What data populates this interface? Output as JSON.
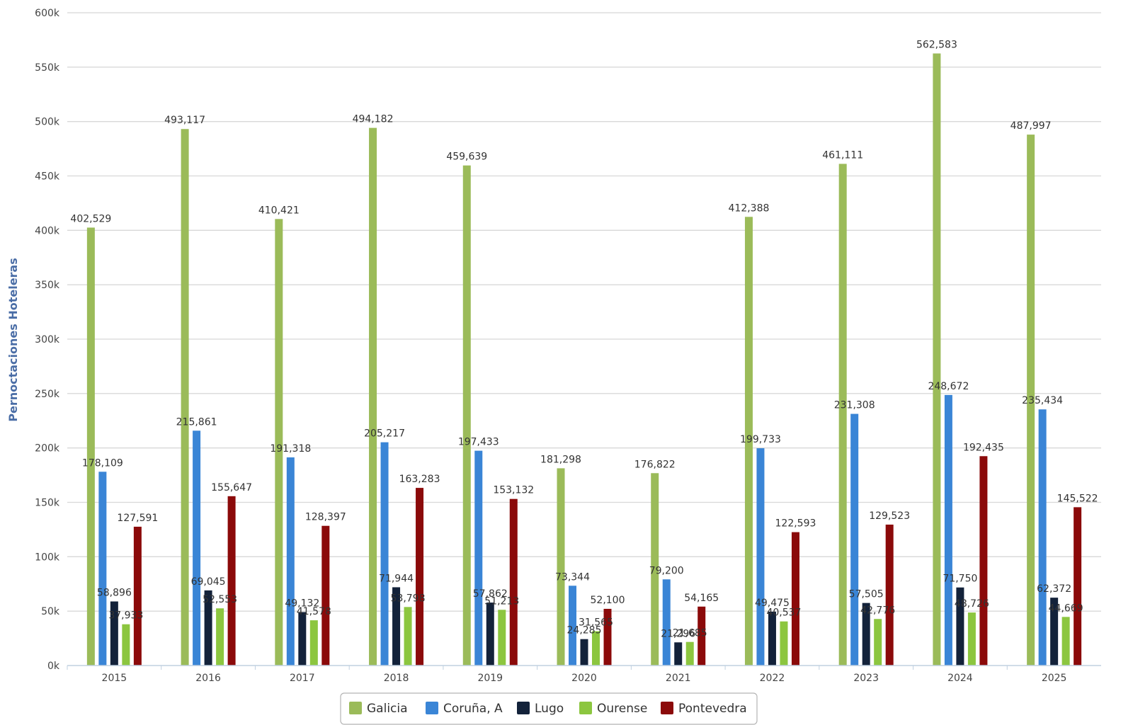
{
  "chart_data": {
    "type": "bar",
    "title": "",
    "xlabel": "",
    "ylabel": "Pernoctaciones Hoteleras",
    "ylim": [
      0,
      600000
    ],
    "yticks": [
      {
        "value": 0,
        "label": "0k"
      },
      {
        "value": 50000,
        "label": "50k"
      },
      {
        "value": 100000,
        "label": "100k"
      },
      {
        "value": 150000,
        "label": "150k"
      },
      {
        "value": 200000,
        "label": "200k"
      },
      {
        "value": 250000,
        "label": "250k"
      },
      {
        "value": 300000,
        "label": "300k"
      },
      {
        "value": 350000,
        "label": "350k"
      },
      {
        "value": 400000,
        "label": "400k"
      },
      {
        "value": 450000,
        "label": "450k"
      },
      {
        "value": 500000,
        "label": "500k"
      },
      {
        "value": 550000,
        "label": "550k"
      },
      {
        "value": 600000,
        "label": "600k"
      }
    ],
    "grid": true,
    "legend_position": "bottom-center",
    "categories": [
      "2015",
      "2016",
      "2017",
      "2018",
      "2019",
      "2020",
      "2021",
      "2022",
      "2023",
      "2024",
      "2025"
    ],
    "series": [
      {
        "name": "Galicia",
        "color": "#9bbb59",
        "values": [
          402529,
          493117,
          410421,
          494182,
          459639,
          181298,
          176822,
          412388,
          461111,
          562583,
          487997
        ],
        "labels": [
          "402,529",
          "493,117",
          "410,421",
          "494,182",
          "459,639",
          "181,298",
          "176,822",
          "412,388",
          "461,111",
          "562,583",
          "487,997"
        ]
      },
      {
        "name": "Coruña, A",
        "color": "#3a85d6",
        "values": [
          178109,
          215861,
          191318,
          205217,
          197433,
          73344,
          79200,
          199733,
          231308,
          248672,
          235434
        ],
        "labels": [
          "178,109",
          "215,861",
          "191,318",
          "205,217",
          "197,433",
          "73,344",
          "79,200",
          "199,733",
          "231,308",
          "248,672",
          "235,434"
        ]
      },
      {
        "name": "Lugo",
        "color": "#13223a",
        "values": [
          58896,
          69045,
          49132,
          71944,
          57862,
          24285,
          21296,
          49475,
          57505,
          71750,
          62372
        ],
        "labels": [
          "58,896",
          "69,045",
          "49,132",
          "71,944",
          "57,862",
          "24,285",
          "21,296",
          "49,475",
          "57,505",
          "71,750",
          "62,372"
        ]
      },
      {
        "name": "Ourense",
        "color": "#8cc63f",
        "values": [
          37933,
          52553,
          41578,
          53798,
          51213,
          31565,
          21685,
          40537,
          42776,
          48726,
          44669
        ],
        "labels": [
          "37,933",
          "52,553",
          "41,578",
          "53,798",
          "51,213",
          "31,565",
          "21,685",
          "40,537",
          "42,776",
          "48,726",
          "44,669"
        ]
      },
      {
        "name": "Pontevedra",
        "color": "#8b0a0a",
        "values": [
          127591,
          155647,
          128397,
          163283,
          153132,
          52100,
          54165,
          122593,
          129523,
          192435,
          145522
        ],
        "labels": [
          "127,591",
          "155,647",
          "128,397",
          "163,283",
          "153,132",
          "52,100",
          "54,165",
          "122,593",
          "129,523",
          "192,435",
          "145,522"
        ]
      }
    ]
  }
}
